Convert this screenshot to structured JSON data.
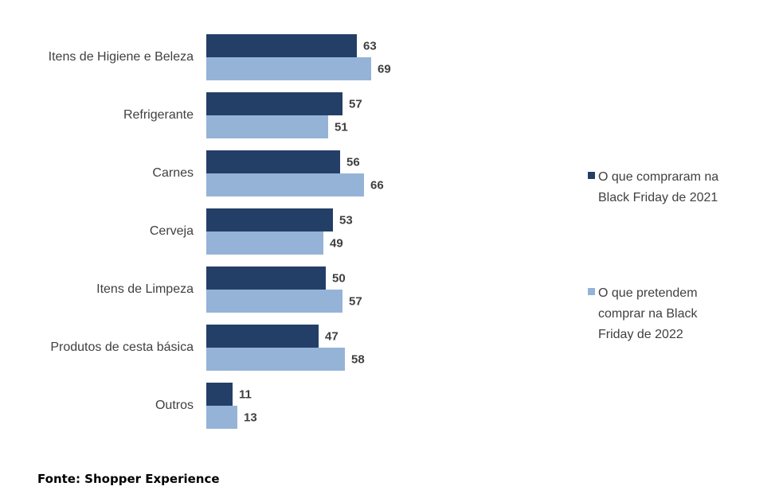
{
  "chart_data": {
    "type": "bar",
    "orientation": "horizontal",
    "categories": [
      "Itens de Higiene e Beleza",
      "Refrigerante",
      "Carnes",
      "Cerveja",
      "Itens de Limpeza",
      "Produtos de cesta básica",
      "Outros"
    ],
    "series": [
      {
        "name": "O que compraram na Black Friday de 2021",
        "legend_lines": [
          "O que compraram na",
          "Black Friday de 2021"
        ],
        "color": "#243f67",
        "values": [
          63,
          57,
          56,
          53,
          50,
          47,
          11
        ]
      },
      {
        "name": "O que pretendem comprar na Black Friday de 2022",
        "legend_lines": [
          "O que pretendem",
          "comprar na Black",
          "Friday de 2022"
        ],
        "color": "#95b3d7",
        "values": [
          69,
          51,
          66,
          49,
          57,
          58,
          13
        ]
      }
    ],
    "xlim": [
      0,
      70
    ],
    "grid": false,
    "legend_position": "right",
    "data_labels": true
  },
  "source": "Fonte: Shopper Experience"
}
